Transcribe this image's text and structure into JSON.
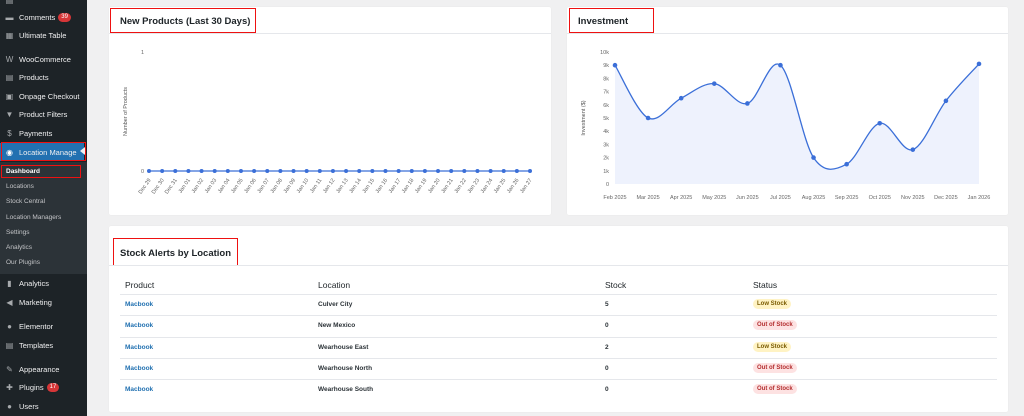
{
  "sidebar": {
    "items": [
      {
        "label": "Comments",
        "icon": "comment-icon",
        "badge": "39",
        "top": 8
      },
      {
        "label": "Ultimate Table",
        "icon": "table-icon",
        "top": 26
      },
      {
        "label": "WooCommerce",
        "icon": "woocommerce-icon",
        "top": 50
      },
      {
        "label": "Products",
        "icon": "archive-icon",
        "top": 68
      },
      {
        "label": "Onpage Checkout",
        "icon": "cart-icon",
        "top": 87
      },
      {
        "label": "Product Filters",
        "icon": "filter-icon",
        "top": 105
      },
      {
        "label": "Payments",
        "icon": "dollar-icon",
        "top": 124
      },
      {
        "label": "Location Manage",
        "icon": "location-icon",
        "top": 143,
        "active": true
      },
      {
        "label": "Analytics",
        "icon": "bar-chart-icon",
        "top": 274
      },
      {
        "label": "Marketing",
        "icon": "megaphone-icon",
        "top": 293
      },
      {
        "label": "Elementor",
        "icon": "elementor-icon",
        "top": 317
      },
      {
        "label": "Templates",
        "icon": "templates-icon",
        "top": 336
      },
      {
        "label": "Appearance",
        "icon": "brush-icon",
        "top": 360
      },
      {
        "label": "Plugins",
        "icon": "plugin-icon",
        "badge": "17",
        "top": 378
      },
      {
        "label": "Users",
        "icon": "users-icon",
        "top": 397
      }
    ],
    "submenu": [
      "Dashboard",
      "Locations",
      "Stock Central",
      "Location Managers",
      "Settings",
      "Analytics",
      "Our Plugins"
    ]
  },
  "new_products": {
    "title": "New Products (Last 30 Days)",
    "ylabel": "Number of Products"
  },
  "investment": {
    "title": "Investment",
    "ylabel": "Investment ($)"
  },
  "stock_alerts": {
    "title": "Stock Alerts by Location",
    "headers": {
      "product": "Product",
      "location": "Location",
      "stock": "Stock",
      "status": "Status"
    },
    "rows": [
      {
        "product": "Macbook",
        "location": "Culver City",
        "stock": "5",
        "status": "Low Stock",
        "kind": "low"
      },
      {
        "product": "Macbook",
        "location": "New Mexico",
        "stock": "0",
        "status": "Out of Stock",
        "kind": "out"
      },
      {
        "product": "Macbook",
        "location": "Wearhouse East",
        "stock": "2",
        "status": "Low Stock",
        "kind": "low"
      },
      {
        "product": "Macbook",
        "location": "Wearhouse North",
        "stock": "0",
        "status": "Out of Stock",
        "kind": "out"
      },
      {
        "product": "Macbook",
        "location": "Wearhouse South",
        "stock": "0",
        "status": "Out of Stock",
        "kind": "out"
      }
    ]
  },
  "colors": {
    "accent": "#2271b1",
    "line": "#3b6fd8",
    "low_bg": "#fff3c4",
    "low_fg": "#7a5b00",
    "out_bg": "#fde2e2",
    "out_fg": "#b32d2e",
    "highlight": "#ee1111"
  },
  "chart_data": [
    {
      "type": "line",
      "title": "New Products (Last 30 Days)",
      "xlabel": "",
      "ylabel": "Number of Products",
      "categories": [
        "Dec 29",
        "Dec 30",
        "Dec 31",
        "Jan 01",
        "Jan 02",
        "Jan 03",
        "Jan 04",
        "Jan 05",
        "Jan 06",
        "Jan 07",
        "Jan 08",
        "Jan 09",
        "Jan 10",
        "Jan 11",
        "Jan 12",
        "Jan 13",
        "Jan 14",
        "Jan 15",
        "Jan 16",
        "Jan 17",
        "Jan 18",
        "Jan 19",
        "Jan 20",
        "Jan 21",
        "Jan 22",
        "Jan 23",
        "Jan 24",
        "Jan 25",
        "Jan 26",
        "Jan 27"
      ],
      "values": [
        0,
        0,
        0,
        0,
        0,
        0,
        0,
        0,
        0,
        0,
        0,
        0,
        0,
        0,
        0,
        0,
        0,
        0,
        0,
        0,
        0,
        0,
        0,
        0,
        0,
        0,
        0,
        0,
        0,
        0
      ],
      "yticks": [
        0,
        1
      ],
      "ylim": [
        0,
        1
      ],
      "grid": false
    },
    {
      "type": "area",
      "title": "Investment",
      "xlabel": "",
      "ylabel": "Investment ($)",
      "categories": [
        "Feb 2025",
        "Mar 2025",
        "Apr 2025",
        "May 2025",
        "Jun 2025",
        "Jul 2025",
        "Aug 2025",
        "Sep 2025",
        "Oct 2025",
        "Nov 2025",
        "Dec 2025",
        "Jan 2026"
      ],
      "values": [
        9000,
        5000,
        6500,
        7600,
        6100,
        9000,
        2000,
        1500,
        4600,
        2600,
        6300,
        9100
      ],
      "yticks": [
        "0",
        "1k",
        "2k",
        "3k",
        "4k",
        "5k",
        "6k",
        "7k",
        "8k",
        "9k",
        "10k"
      ],
      "ylim": [
        0,
        10000
      ],
      "grid": false
    }
  ]
}
